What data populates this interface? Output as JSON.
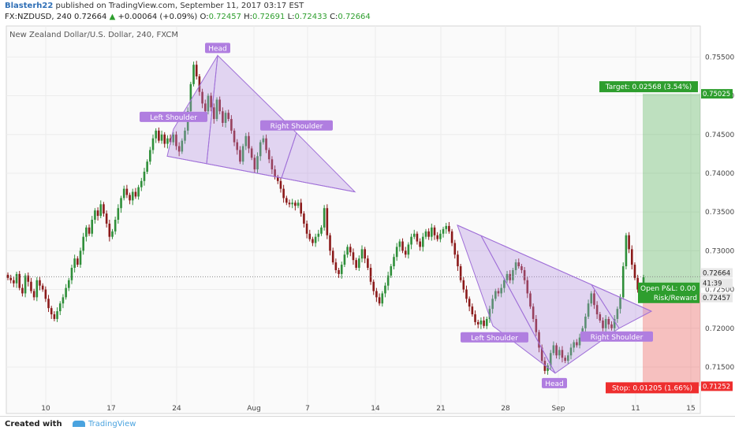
{
  "header": {
    "author": "Blasterh22",
    "published_text": "published on TradingView.com, September 11, 2017 03:17 EST",
    "symbol_line": "FX:NZDUSD, 240",
    "last_price": "0.72664",
    "change_text": "+0.00064 (+0.09%)",
    "ohlc": {
      "o_label": "O:",
      "o": "0.72457",
      "h_label": "H:",
      "h": "0.72691",
      "l_label": "L:",
      "l": "0.72433",
      "c_label": "C:",
      "c": "0.72664"
    }
  },
  "footer": {
    "created_with": "Created with",
    "brand": "TradingView"
  },
  "chart_data": {
    "type": "candlestick",
    "title": "New Zealand Dollar/U.S. Dollar, 240, FXCM",
    "ylim": [
      0.709,
      0.759
    ],
    "y_ticks": [
      "0.75500",
      "0.75000",
      "0.74500",
      "0.74000",
      "0.73500",
      "0.73000",
      "0.72500",
      "0.72000",
      "0.71500"
    ],
    "x_ticks": [
      "10",
      "17",
      "24",
      "Aug",
      "7",
      "14",
      "21",
      "28",
      "Sep",
      "11",
      "15"
    ],
    "last_price_label": "0.72664",
    "time_label": "41:39",
    "open_label": "0.72457",
    "target_price_label": "0.75025",
    "stop_price_label": "0.71252",
    "target_text": "Target: 0.02568 (3.54%)",
    "stop_text": "Stop: 0.01205 (1.66%)",
    "open_pnl_text": "Open P&L: 0.00",
    "risk_reward_text": "Risk/Reward",
    "position": {
      "entry": 0.72457,
      "target": 0.75025,
      "stop": 0.71252
    },
    "pattern_1": {
      "left_shoulder_label": "Left Shoulder",
      "head_label": "Head",
      "right_shoulder_label": "Right Shoulder",
      "left_shoulder": 0.7457,
      "head": 0.7552,
      "right_shoulder": 0.7452,
      "neckline_start": 0.7422,
      "neckline_end": 0.7376
    },
    "pattern_2": {
      "left_shoulder_label": "Left Shoulder",
      "head_label": "Head",
      "right_shoulder_label": "Right Shoulder",
      "left_shoulder": 0.7203,
      "head": 0.7142,
      "right_shoulder": 0.72,
      "neckline_start": 0.7333,
      "neckline_end": 0.7222
    },
    "closes": [
      0.7265,
      0.7262,
      0.7258,
      0.727,
      0.7252,
      0.7245,
      0.7268,
      0.726,
      0.7248,
      0.724,
      0.7262,
      0.7255,
      0.725,
      0.7238,
      0.7226,
      0.7218,
      0.7212,
      0.7222,
      0.7232,
      0.724,
      0.7252,
      0.7262,
      0.7278,
      0.729,
      0.7282,
      0.73,
      0.7318,
      0.733,
      0.7322,
      0.734,
      0.7352,
      0.7345,
      0.736,
      0.7348,
      0.7335,
      0.7318,
      0.7325,
      0.734,
      0.7355,
      0.7368,
      0.738,
      0.7372,
      0.7365,
      0.7376,
      0.737,
      0.7382,
      0.739,
      0.7402,
      0.7415,
      0.743,
      0.7445,
      0.7455,
      0.7442,
      0.745,
      0.7438,
      0.7445,
      0.744,
      0.745,
      0.7435,
      0.7428,
      0.7442,
      0.7455,
      0.748,
      0.7515,
      0.754,
      0.7525,
      0.7505,
      0.749,
      0.748,
      0.75,
      0.7485,
      0.747,
      0.7495,
      0.748,
      0.7465,
      0.7478,
      0.747,
      0.7455,
      0.744,
      0.743,
      0.7415,
      0.7435,
      0.7448,
      0.7432,
      0.742,
      0.7405,
      0.7422,
      0.744,
      0.7445,
      0.743,
      0.7418,
      0.7405,
      0.7395,
      0.739,
      0.738,
      0.7368,
      0.7362,
      0.736,
      0.7362,
      0.7358,
      0.7362,
      0.7348,
      0.7335,
      0.7322,
      0.7315,
      0.731,
      0.7318,
      0.7322,
      0.733,
      0.7355,
      0.732,
      0.73,
      0.7285,
      0.7275,
      0.727,
      0.7282,
      0.7295,
      0.7305,
      0.7298,
      0.7288,
      0.7278,
      0.729,
      0.7302,
      0.729,
      0.7278,
      0.726,
      0.7248,
      0.724,
      0.7232,
      0.7245,
      0.7255,
      0.7268,
      0.728,
      0.7292,
      0.7305,
      0.7312,
      0.73,
      0.7295,
      0.7308,
      0.7318,
      0.7322,
      0.7312,
      0.7305,
      0.7318,
      0.7325,
      0.7318,
      0.733,
      0.732,
      0.7315,
      0.7322,
      0.7328,
      0.7332,
      0.7325,
      0.731,
      0.7295,
      0.728,
      0.7262,
      0.725,
      0.7238,
      0.7228,
      0.7218,
      0.7208,
      0.7205,
      0.721,
      0.7203,
      0.7212,
      0.7225,
      0.7238,
      0.7248,
      0.7245,
      0.7252,
      0.7262,
      0.727,
      0.7262,
      0.7275,
      0.7285,
      0.728,
      0.7275,
      0.7262,
      0.7245,
      0.7228,
      0.7212,
      0.7195,
      0.7175,
      0.7158,
      0.7145,
      0.7152,
      0.7168,
      0.7178,
      0.7165,
      0.7172,
      0.7162,
      0.7158,
      0.7165,
      0.7175,
      0.7182,
      0.7178,
      0.7188,
      0.72,
      0.7215,
      0.7232,
      0.7245,
      0.723,
      0.7218,
      0.721,
      0.72,
      0.7212,
      0.7205,
      0.72,
      0.7212,
      0.7225,
      0.724,
      0.728,
      0.732,
      0.7302,
      0.7282,
      0.7265,
      0.725,
      0.724,
      0.7266
    ]
  }
}
